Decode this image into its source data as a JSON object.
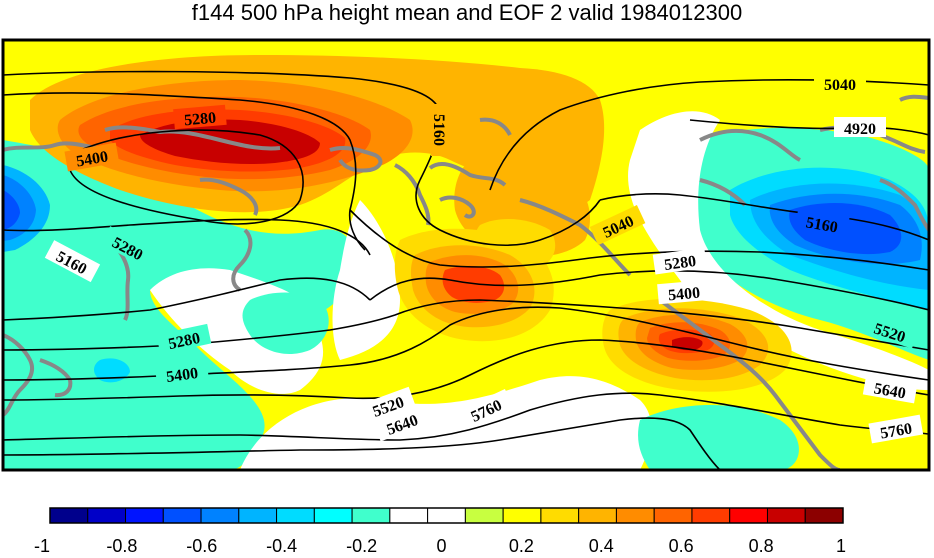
{
  "title": "f144 500 hPa height mean and EOF 2 valid 1984012300",
  "colors": {
    "frame": "#000000",
    "contour": "#000000",
    "coastline": "#888888"
  },
  "colorbar": {
    "bins": [
      "#00008c",
      "#0000c8",
      "#0014ff",
      "#0050ff",
      "#0082ff",
      "#00b4ff",
      "#00dcff",
      "#00ffff",
      "#40ffcc",
      "#ffffff",
      "#ffffff",
      "#c8ff40",
      "#ffff00",
      "#ffdc00",
      "#ffb400",
      "#ff8c00",
      "#ff6400",
      "#ff3c00",
      "#ff0000",
      "#c80000",
      "#8c0000"
    ],
    "tick_labels": [
      "-1",
      "-0.8",
      "-0.6",
      "-0.4",
      "-0.2",
      "0",
      "0.2",
      "0.4",
      "0.6",
      "0.8",
      "1"
    ]
  },
  "contour_labels": [
    {
      "text": "5040"
    },
    {
      "text": "4920"
    },
    {
      "text": "5280"
    },
    {
      "text": "5400"
    },
    {
      "text": "5160"
    },
    {
      "text": "5040"
    },
    {
      "text": "5160"
    },
    {
      "text": "5280"
    },
    {
      "text": "5160"
    },
    {
      "text": "5280"
    },
    {
      "text": "5400"
    },
    {
      "text": "5280"
    },
    {
      "text": "5400"
    },
    {
      "text": "5520"
    },
    {
      "text": "5520"
    },
    {
      "text": "5640"
    },
    {
      "text": "5760"
    },
    {
      "text": "5640"
    },
    {
      "text": "5760"
    }
  ]
}
